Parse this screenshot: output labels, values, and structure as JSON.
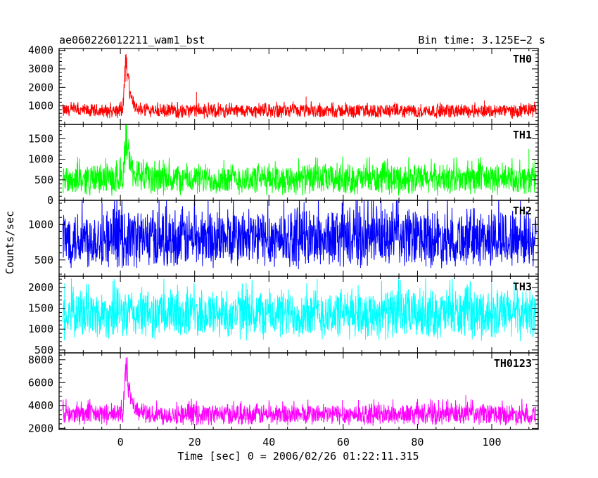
{
  "title_left": "ae060226012211_wam1_bst",
  "title_right": "Bin time: 3.125E−2 s",
  "ylabel": "Counts/sec",
  "xlabel": "Time [sec] 0 = 2006/02/26 01:22:11.315",
  "chart_data": [
    {
      "type": "line",
      "name": "TH0",
      "color": "#ff0000",
      "xlim": [
        -16.5,
        112.5
      ],
      "ylim": [
        0,
        4100
      ],
      "yticks": [
        1000,
        2000,
        3000,
        4000
      ],
      "x_range": [
        -15.5,
        112
      ],
      "baseline": 750,
      "noise_low": 300,
      "noise_high": 1150,
      "burst": {
        "peak_x": 1.5,
        "peak": 4100,
        "width": 1.2
      },
      "outliers": [
        [
          20.5,
          1750
        ],
        [
          50,
          1500
        ],
        [
          98,
          1300
        ]
      ]
    },
    {
      "type": "line",
      "name": "TH1",
      "color": "#00ff00",
      "xlim": [
        -16.5,
        112.5
      ],
      "ylim": [
        0,
        1850
      ],
      "yticks": [
        0,
        500,
        1000,
        1500
      ],
      "x_range": [
        -15.5,
        112
      ],
      "baseline": 480,
      "noise_low": 100,
      "noise_high": 950,
      "burst": {
        "peak_x": 1.5,
        "peak": 1850,
        "width": 1.2
      },
      "outliers": [
        [
          110,
          1250
        ]
      ]
    },
    {
      "type": "line",
      "name": "TH2",
      "color": "#0000ff",
      "xlim": [
        -16.5,
        112.5
      ],
      "ylim": [
        270,
        1340
      ],
      "yticks": [
        500,
        1000
      ],
      "x_range": [
        -15.5,
        112
      ],
      "baseline": 720,
      "noise_low": 360,
      "noise_high": 1300,
      "burst": null,
      "outliers": []
    },
    {
      "type": "line",
      "name": "TH3",
      "color": "#00ffff",
      "xlim": [
        -16.5,
        112.5
      ],
      "ylim": [
        430,
        2270
      ],
      "yticks": [
        500,
        1000,
        1500,
        2000
      ],
      "x_range": [
        -15.5,
        112
      ],
      "baseline": 1330,
      "noise_low": 700,
      "noise_high": 2050,
      "burst": null,
      "outliers": [
        [
          53,
          2200
        ],
        [
          -15,
          2100
        ]
      ]
    },
    {
      "type": "line",
      "name": "TH0123",
      "color": "#ff00ff",
      "xlim": [
        -16.5,
        112.5
      ],
      "ylim": [
        1900,
        8600
      ],
      "yticks": [
        2000,
        4000,
        6000,
        8000
      ],
      "x_range": [
        -15.5,
        112
      ],
      "baseline": 3100,
      "noise_low": 2200,
      "noise_high": 4300,
      "burst": {
        "peak_x": 1.5,
        "peak": 8400,
        "width": 1.2
      },
      "outliers": [
        [
          93,
          4900
        ]
      ]
    }
  ],
  "xticks_major": [
    0,
    20,
    40,
    60,
    80,
    100
  ],
  "xticks_minor_step": 5
}
